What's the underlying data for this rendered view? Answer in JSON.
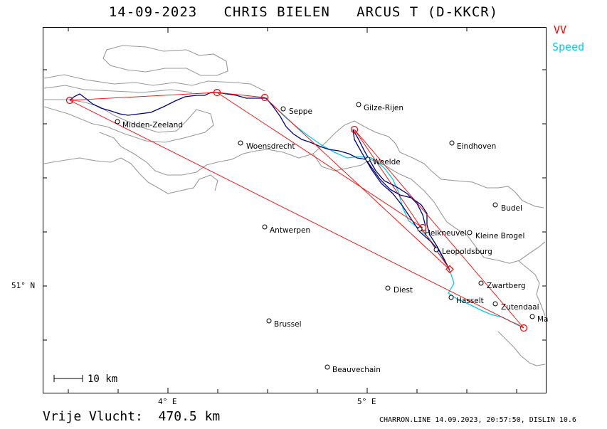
{
  "header": {
    "date": "14-09-2023",
    "pilot": "CHRIS BIELEN",
    "glider": "ARCUS T (D-KKCR)"
  },
  "legend": {
    "vv_label": "VV",
    "vv_color": "#ff0000",
    "speed_label": "Speed",
    "speed_color": "#00ccee"
  },
  "map": {
    "track_color": "#000080",
    "coastline_color": "#999999",
    "places": [
      {
        "name": "Seppe"
      },
      {
        "name": "Gilze-Rijen"
      },
      {
        "name": "Midden-Zeeland"
      },
      {
        "name": "Woensdrecht"
      },
      {
        "name": "Eindhoven"
      },
      {
        "name": "Weelde"
      },
      {
        "name": "Budel"
      },
      {
        "name": "Antwerpen"
      },
      {
        "name": "Leopoldsburg"
      },
      {
        "name": "Kleine Brogel"
      },
      {
        "name": "Zwartberg"
      },
      {
        "name": "Diest"
      },
      {
        "name": "Hasselt"
      },
      {
        "name": "Zutendaal"
      },
      {
        "name": "Brussel"
      },
      {
        "name": "Beauvechain"
      },
      {
        "name": "Heikneuvel"
      },
      {
        "name": "Ma"
      }
    ],
    "axis": {
      "lon_4": "4° E",
      "lon_5": "5° E",
      "lat_51": "51° N"
    },
    "scale_label": "10 km"
  },
  "footer": {
    "distance": "Vrije Vlucht:  470.5 km",
    "credits": "CHARRON.LINE 14.09.2023, 20:57:50, DISLIN 10.6"
  }
}
